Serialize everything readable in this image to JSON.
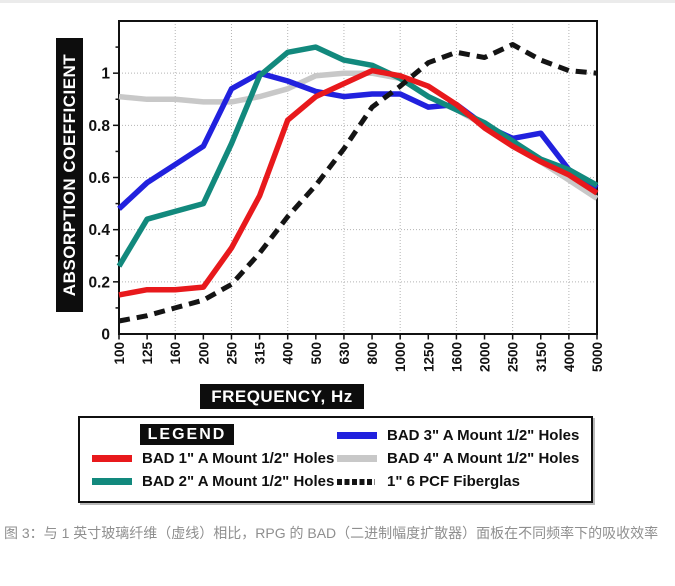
{
  "caption": {
    "text": "图 3：与 1 英寸玻璃纤维（虚线）相比，RPG 的 BAD（二进制幅度扩散器）面板在不同频率下的吸收效率"
  },
  "legend": {
    "title": "LEGEND",
    "column1_series": [
      0,
      1
    ],
    "column2_series": [
      2,
      3,
      4
    ]
  },
  "colors": {
    "axis_box_background": "#0d0d0d",
    "axis_box_text": "#ffffff",
    "plot_border": "#111111",
    "grid": "#b4b4b4",
    "tick_label": "#111111",
    "caption_text": "#8f8f8f"
  },
  "chart_data": {
    "type": "line",
    "title": "",
    "xlabel": "FREQUENCY, Hz",
    "ylabel": "ABSORPTION COEFFICIENT",
    "x_categories": [
      "100",
      "125",
      "160",
      "200",
      "250",
      "315",
      "400",
      "500",
      "630",
      "800",
      "1000",
      "1250",
      "1600",
      "2000",
      "2500",
      "3150",
      "4000",
      "5000"
    ],
    "ylim": [
      0,
      1.2
    ],
    "y_ticks": [
      0,
      0.2,
      0.4,
      0.6,
      0.8,
      1
    ],
    "y_tick_labels": [
      "0",
      "0.2",
      "0.4",
      "0.6",
      "0.8",
      "1"
    ],
    "grid": {
      "vertical_at": [
        "160",
        "250",
        "400",
        "630",
        "1000",
        "1600",
        "2500",
        "4000"
      ],
      "horizontal_step": 0.2,
      "style": "dotted"
    },
    "legend_position": "bottom",
    "series": [
      {
        "name": "BAD 1\" A Mount 1/2\" Holes",
        "color": "#e8191c",
        "style": "solid",
        "values": [
          0.15,
          0.17,
          0.17,
          0.18,
          0.33,
          0.53,
          0.82,
          0.91,
          0.96,
          1.01,
          0.99,
          0.95,
          0.88,
          0.79,
          0.72,
          0.66,
          0.61,
          0.54
        ]
      },
      {
        "name": "BAD 2\" A Mount 1/2\" Holes",
        "color": "#12897d",
        "style": "solid",
        "values": [
          0.26,
          0.44,
          0.47,
          0.5,
          0.73,
          0.99,
          1.08,
          1.1,
          1.05,
          1.03,
          0.98,
          0.91,
          0.86,
          0.81,
          0.74,
          0.67,
          0.63,
          0.57
        ]
      },
      {
        "name": "BAD 3\" A Mount 1/2\" Holes",
        "color": "#2121de",
        "style": "solid",
        "values": [
          0.48,
          0.58,
          0.65,
          0.72,
          0.94,
          1.0,
          0.97,
          0.93,
          0.91,
          0.92,
          0.92,
          0.87,
          0.88,
          0.8,
          0.75,
          0.77,
          0.63,
          0.56
        ]
      },
      {
        "name": "BAD 4\" A Mount 1/2\" Holes",
        "color": "#c8c8c8",
        "style": "solid",
        "values": [
          0.91,
          0.9,
          0.9,
          0.89,
          0.89,
          0.91,
          0.94,
          0.99,
          1.0,
          1.0,
          0.98,
          0.91,
          0.86,
          0.8,
          0.73,
          0.66,
          0.59,
          0.52
        ]
      },
      {
        "name": "1\" 6 PCF Fiberglas",
        "color": "#141414",
        "style": "dashed",
        "values": [
          0.05,
          0.07,
          0.1,
          0.13,
          0.19,
          0.31,
          0.45,
          0.57,
          0.71,
          0.87,
          0.95,
          1.04,
          1.08,
          1.06,
          1.11,
          1.05,
          1.01,
          1.0
        ]
      }
    ]
  }
}
